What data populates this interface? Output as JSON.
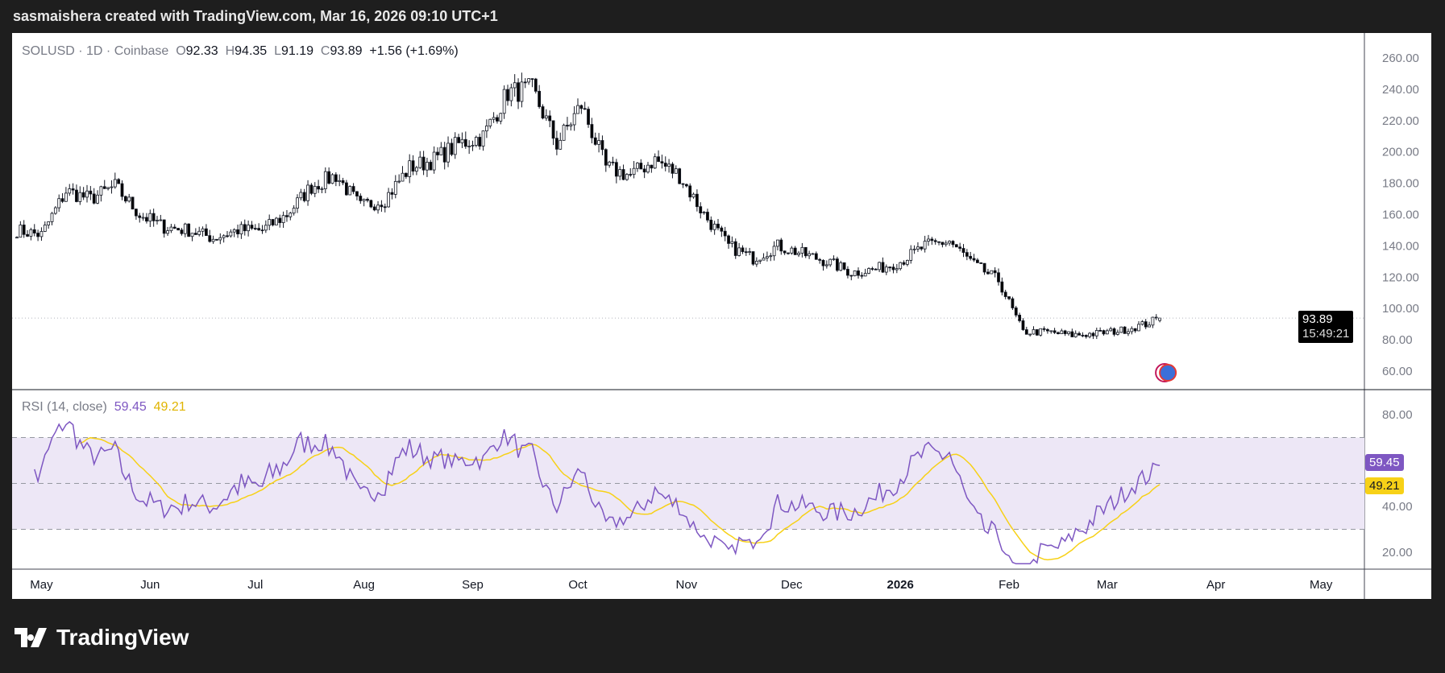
{
  "header": {
    "attribution": "sasmaishera created with TradingView.com, Mar 16, 2026 09:10 UTC+1"
  },
  "legend": {
    "symbol": "SOLUSD · 1D · Coinbase",
    "o_label": "O",
    "o": "92.33",
    "h_label": "H",
    "h": "94.35",
    "l_label": "L",
    "l": "91.19",
    "c_label": "C",
    "c": "93.89",
    "change": "+1.56 (+1.69%)"
  },
  "rsi_legend": {
    "label": "RSI (14, close)",
    "rsi": "59.45",
    "ma": "49.21"
  },
  "last_price_tag": {
    "price": "93.89",
    "countdown": "15:49:21"
  },
  "footer": {
    "brand": "TradingView"
  },
  "colors": {
    "up": "#ffffff",
    "down": "#000000",
    "candle_border": "#131722",
    "rsi": "#7e57c2",
    "rsi_ma": "#f7d117",
    "band": "#ede7f6"
  },
  "chart_data": [
    {
      "type": "candlestick",
      "title": "SOLUSD · 1D · Coinbase",
      "ylim": [
        50,
        270
      ],
      "yticks": [
        "260.00",
        "240.00",
        "220.00",
        "200.00",
        "180.00",
        "160.00",
        "140.00",
        "120.00",
        "100.00",
        "80.00",
        "60.00"
      ],
      "xticks": [
        "May",
        "Jun",
        "Jul",
        "Aug",
        "Sep",
        "Oct",
        "Nov",
        "Dec",
        "2026",
        "Feb",
        "Mar",
        "Apr",
        "May"
      ],
      "approx_weekly_closes": {
        "dates": [
          "2025-04-24",
          "2025-05-01",
          "2025-05-08",
          "2025-05-15",
          "2025-05-22",
          "2025-05-29",
          "2025-06-05",
          "2025-06-12",
          "2025-06-19",
          "2025-06-26",
          "2025-07-03",
          "2025-07-10",
          "2025-07-17",
          "2025-07-24",
          "2025-07-31",
          "2025-08-07",
          "2025-08-14",
          "2025-08-21",
          "2025-08-28",
          "2025-09-04",
          "2025-09-11",
          "2025-09-18",
          "2025-09-25",
          "2025-10-02",
          "2025-10-09",
          "2025-10-16",
          "2025-10-23",
          "2025-10-30",
          "2025-11-06",
          "2025-11-13",
          "2025-11-20",
          "2025-11-27",
          "2025-12-04",
          "2025-12-11",
          "2025-12-18",
          "2025-12-25",
          "2026-01-01",
          "2026-01-08",
          "2026-01-15",
          "2026-01-22",
          "2026-01-29",
          "2026-02-05",
          "2026-02-12",
          "2026-02-19",
          "2026-02-26",
          "2026-03-05",
          "2026-03-12",
          "2026-03-16"
        ],
        "values": [
          150,
          147,
          175,
          170,
          178,
          160,
          152,
          150,
          145,
          150,
          150,
          160,
          178,
          185,
          165,
          170,
          190,
          195,
          205,
          210,
          238,
          240,
          205,
          230,
          190,
          185,
          195,
          185,
          160,
          140,
          132,
          140,
          135,
          130,
          123,
          125,
          130,
          140,
          143,
          128,
          118,
          85,
          85,
          83,
          84,
          86,
          90,
          93.89
        ]
      }
    },
    {
      "type": "line",
      "title": "RSI (14, close)",
      "ylim": [
        15,
        88
      ],
      "yticks": [
        "80.00",
        "40.00",
        "20.00"
      ],
      "bands": [
        30,
        70
      ],
      "mid": 50,
      "series": [
        {
          "name": "RSI",
          "last": 59.45
        },
        {
          "name": "RSI MA",
          "last": 49.21
        }
      ]
    }
  ]
}
